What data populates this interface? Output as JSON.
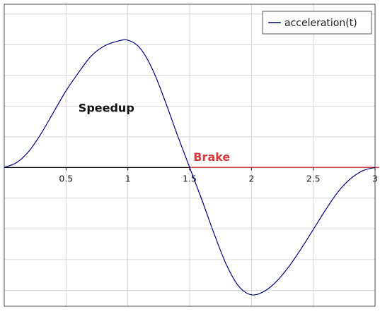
{
  "chart_data": {
    "type": "line",
    "title": "",
    "xlabel": "",
    "ylabel": "",
    "xlim": [
      0,
      3
    ],
    "ylim": [
      -0.85,
      1
    ],
    "grid": true,
    "x_ticks": [
      0.5,
      1,
      1.5,
      2,
      2.5,
      3
    ],
    "x_tick_labels": [
      "0.5",
      "1",
      "1.5",
      "2",
      "2.5",
      "3"
    ],
    "legend": {
      "position": "top-right",
      "entries": [
        "acceleration(t)"
      ]
    },
    "series": [
      {
        "name": "acceleration(t)",
        "color": "#00007f",
        "x": [
          0,
          0.1,
          0.2,
          0.3,
          0.4,
          0.5,
          0.6,
          0.7,
          0.8,
          0.9,
          1.0,
          1.1,
          1.2,
          1.3,
          1.4,
          1.5,
          1.6,
          1.7,
          1.8,
          1.9,
          2.0,
          2.1,
          2.2,
          2.3,
          2.4,
          2.5,
          2.6,
          2.7,
          2.8,
          2.9,
          3.0
        ],
        "y": [
          0,
          0.03,
          0.1,
          0.21,
          0.34,
          0.47,
          0.58,
          0.68,
          0.74,
          0.77,
          0.78,
          0.73,
          0.6,
          0.41,
          0.2,
          0,
          -0.2,
          -0.41,
          -0.6,
          -0.73,
          -0.78,
          -0.76,
          -0.7,
          -0.61,
          -0.5,
          -0.38,
          -0.26,
          -0.15,
          -0.07,
          -0.02,
          0
        ]
      }
    ],
    "annotations": [
      {
        "text": "Speedup",
        "x": 0.6,
        "y": 0.34,
        "color": "#111111"
      },
      {
        "text": "Brake",
        "x": 1.53,
        "y": 0.04,
        "color": "#d9383c"
      }
    ],
    "brake_line": {
      "color": "#d9383c",
      "y": 0,
      "x_start": 1.5,
      "x_end": 3
    }
  }
}
